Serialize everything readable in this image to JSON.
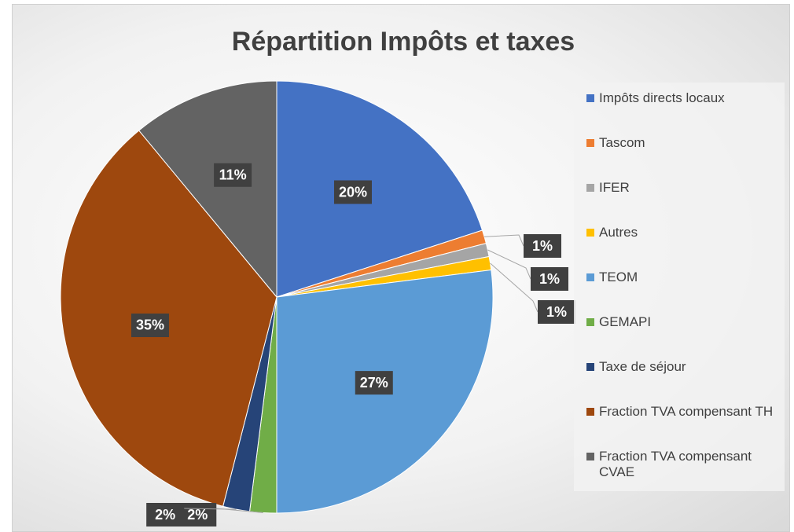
{
  "chart_data": {
    "type": "pie",
    "title": "Répartition Impôts et taxes",
    "categories": [
      "Impôts directs locaux",
      "Tascom",
      "IFER",
      "Autres",
      "TEOM",
      "GEMAPI",
      "Taxe de séjour",
      "Fraction TVA compensant TH",
      "Fraction TVA compensant CVAE"
    ],
    "values": [
      20,
      1,
      1,
      1,
      27,
      2,
      2,
      35,
      11
    ],
    "value_labels": [
      "20%",
      "1%",
      "1%",
      "1%",
      "27%",
      "2%",
      "2%",
      "35%",
      "11%"
    ],
    "colors": [
      "#4472c4",
      "#ed7d31",
      "#a5a5a5",
      "#ffc000",
      "#5b9bd5",
      "#70ad47",
      "#264478",
      "#9e480e",
      "#636363"
    ],
    "legend": "right"
  }
}
